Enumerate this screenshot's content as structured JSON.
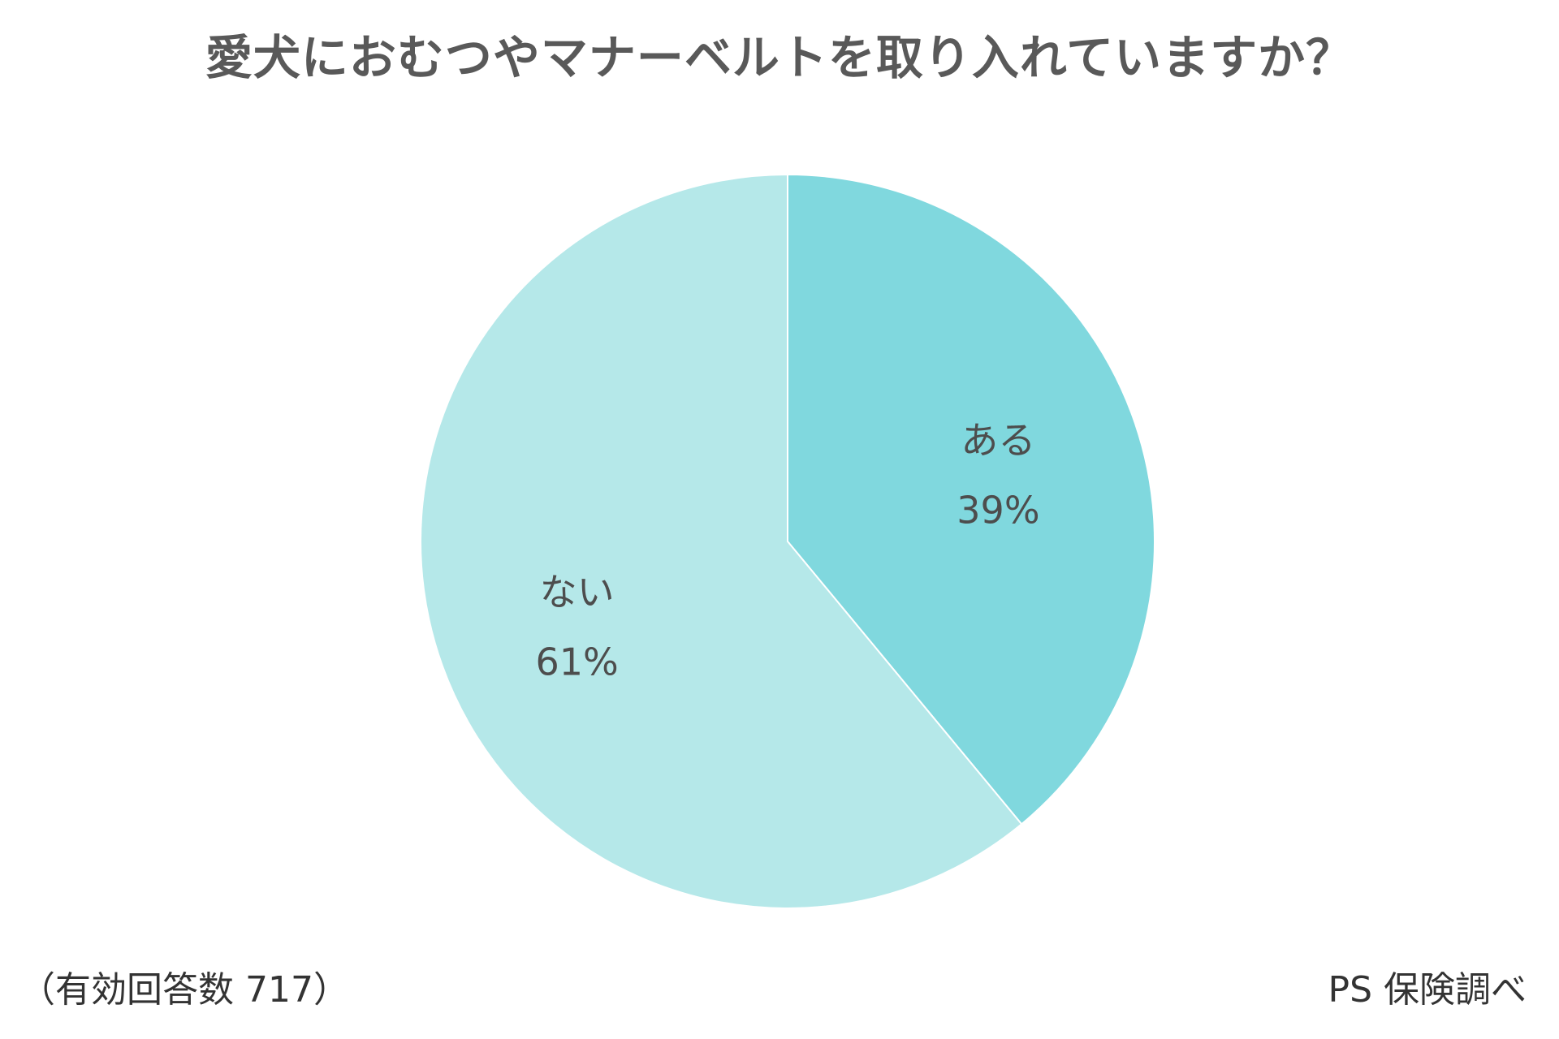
{
  "chart_data": {
    "type": "pie",
    "title": "愛犬におむつやマナーベルトを取り入れていますか？",
    "slices": [
      {
        "label": "ある",
        "value": 39,
        "value_label": "39%",
        "color": "#80d8de"
      },
      {
        "label": "ない",
        "value": 61,
        "value_label": "61%",
        "color": "#b5e8e9"
      }
    ],
    "start_angle_deg": 0,
    "direction": "clockwise",
    "slice_border_color": "#ffffff"
  },
  "footer": {
    "sample_note": "（有効回答数 717）",
    "source": "PS 保険調べ"
  }
}
